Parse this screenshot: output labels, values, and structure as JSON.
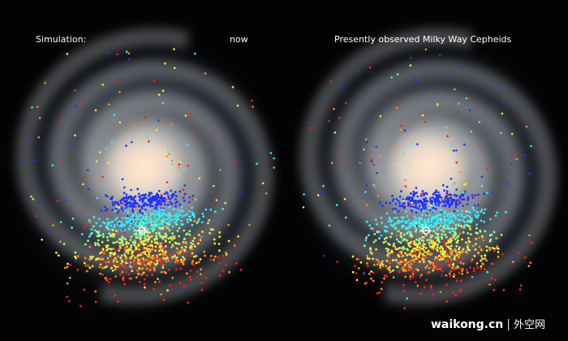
{
  "labels": {
    "simulation": "Simulation:",
    "now": "now",
    "observed": "Presently observed Milky Way Cepheids"
  },
  "watermark": {
    "site": "waikong.cn",
    "separator": "|",
    "chinese": "外空网"
  },
  "colors": {
    "background": "#020304",
    "galaxy_core": "#f6dcc4",
    "galaxy_arm": "#8d939b",
    "sun_marker": "#ffffff",
    "dot_blue": "#1f33ff",
    "dot_cyan": "#2ff0ff",
    "dot_green": "#9bff8a",
    "dot_yellow": "#ffe53a",
    "dot_orange": "#ff8c1a",
    "dot_red": "#ff1f10"
  }
}
